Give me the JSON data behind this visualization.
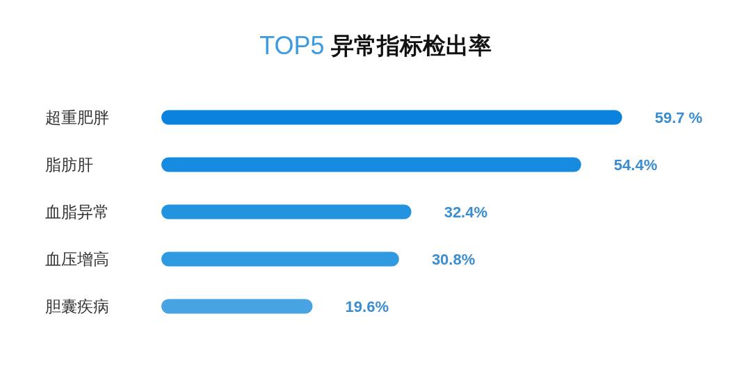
{
  "chart_data": {
    "type": "bar",
    "orientation": "horizontal",
    "title": "TOP5 异常指标检出率",
    "categories": [
      "超重肥胖",
      "脂肪肝",
      "血脂异常",
      "血压增高",
      "胆囊疾病"
    ],
    "values": [
      59.7,
      54.4,
      32.4,
      30.8,
      19.6
    ],
    "colors": [
      "#0a83de",
      "#178be0",
      "#2393e0",
      "#309ae1",
      "#47a3e1"
    ],
    "value_labels": [
      "59.7 %",
      "54.4%",
      "32.4%",
      "30.8%",
      "19.6%"
    ],
    "tick_labels": "y"
  }
}
